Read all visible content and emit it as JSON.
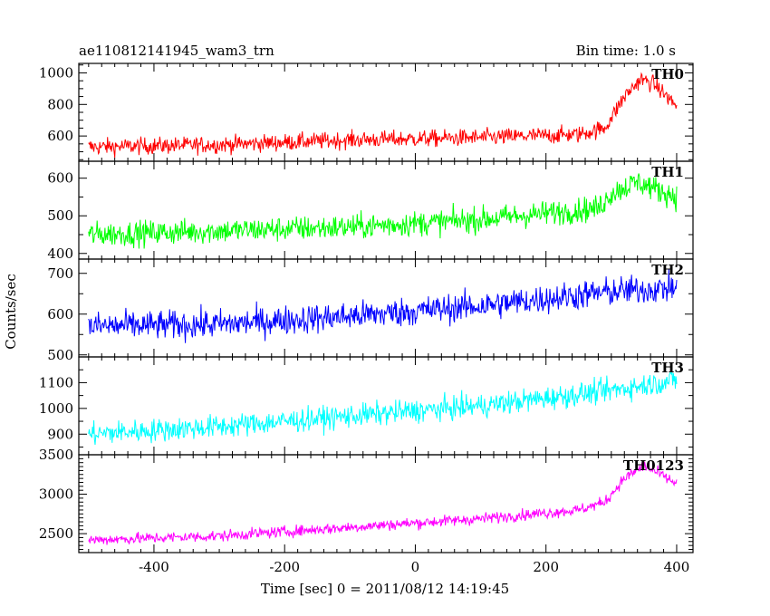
{
  "chart_data": {
    "type": "line",
    "title": "ae110812141945_wam3_trn",
    "subtitle": "Bin time: 1.0 s",
    "xlabel": "Time [sec] 0 = 2011/08/12 14:19:45",
    "ylabel": "Counts/sec",
    "xlim": [
      -515,
      425
    ],
    "x_ticks": [
      -400,
      -200,
      0,
      200,
      400
    ],
    "bin_time_s": 1.0,
    "panels": [
      {
        "name": "TH0",
        "color": "#ff0000",
        "ylim": [
          440,
          1060
        ],
        "y_ticks": [
          600,
          800,
          1000
        ],
        "noise": 45,
        "trend": [
          [
            -500,
            530
          ],
          [
            -300,
            545
          ],
          [
            -100,
            575
          ],
          [
            100,
            590
          ],
          [
            250,
            610
          ],
          [
            290,
            650
          ],
          [
            320,
            850
          ],
          [
            345,
            960
          ],
          [
            365,
            930
          ],
          [
            400,
            790
          ]
        ]
      },
      {
        "name": "TH1",
        "color": "#00ff00",
        "ylim": [
          385,
          645
        ],
        "y_ticks": [
          400,
          500,
          600
        ],
        "noise": 28,
        "trend": [
          [
            -500,
            450
          ],
          [
            -300,
            460
          ],
          [
            -100,
            470
          ],
          [
            100,
            490
          ],
          [
            280,
            520
          ],
          [
            300,
            560
          ],
          [
            340,
            590
          ],
          [
            370,
            570
          ],
          [
            400,
            550
          ]
        ]
      },
      {
        "name": "TH2",
        "color": "#0000ff",
        "ylim": [
          495,
          735
        ],
        "y_ticks": [
          500,
          600,
          700
        ],
        "noise": 30,
        "trend": [
          [
            -500,
            570
          ],
          [
            -300,
            575
          ],
          [
            -100,
            595
          ],
          [
            100,
            620
          ],
          [
            300,
            655
          ],
          [
            400,
            665
          ]
        ]
      },
      {
        "name": "TH3",
        "color": "#00ffff",
        "ylim": [
          820,
          1200
        ],
        "y_ticks": [
          900,
          1000,
          1100
        ],
        "noise": 38,
        "trend": [
          [
            -500,
            900
          ],
          [
            -300,
            930
          ],
          [
            -100,
            970
          ],
          [
            100,
            1010
          ],
          [
            300,
            1070
          ],
          [
            400,
            1110
          ]
        ]
      },
      {
        "name": "TH0123",
        "color": "#ff00ff",
        "ylim": [
          2260,
          3500
        ],
        "y_ticks": [
          2500,
          3000,
          3500
        ],
        "noise": 60,
        "trend": [
          [
            -500,
            2420
          ],
          [
            -300,
            2470
          ],
          [
            -100,
            2580
          ],
          [
            100,
            2690
          ],
          [
            250,
            2800
          ],
          [
            290,
            2900
          ],
          [
            320,
            3200
          ],
          [
            350,
            3360
          ],
          [
            375,
            3250
          ],
          [
            400,
            3130
          ]
        ]
      }
    ]
  }
}
